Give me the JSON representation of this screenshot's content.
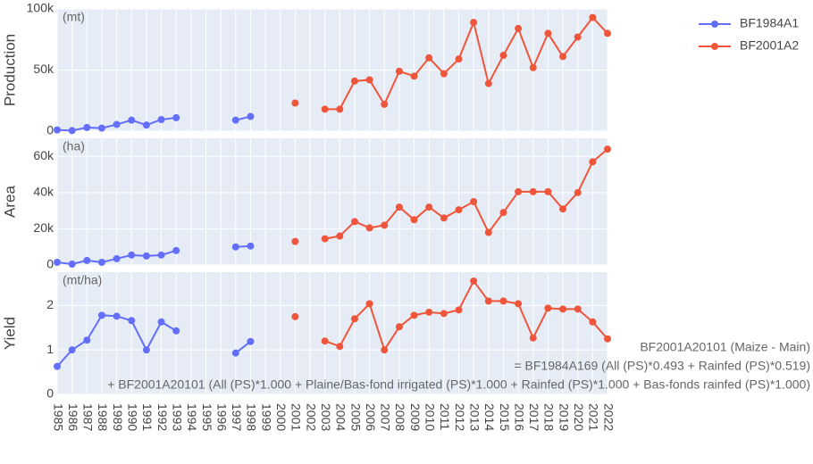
{
  "chart_data": {
    "type": "line",
    "x": [
      1985,
      1986,
      1987,
      1988,
      1989,
      1990,
      1991,
      1992,
      1993,
      1994,
      1995,
      1996,
      1997,
      1998,
      1999,
      2000,
      2001,
      2002,
      2003,
      2004,
      2005,
      2006,
      2007,
      2008,
      2009,
      2010,
      2011,
      2012,
      2013,
      2014,
      2015,
      2016,
      2017,
      2018,
      2019,
      2020,
      2021,
      2022
    ],
    "xlim": [
      1985,
      2022
    ],
    "grid": true,
    "legend": "top-right",
    "series": [
      {
        "name": "BF1984A1",
        "color": "#636efa"
      },
      {
        "name": "BF2001A2",
        "color": "#ef553b"
      }
    ],
    "panels": [
      {
        "ylabel": "Production",
        "unit": "(mt)",
        "ylim": [
          0,
          100000
        ],
        "yticks": [
          0,
          {
            "value": 50000,
            "label": "50k"
          },
          {
            "value": 100000,
            "label": "100k"
          }
        ],
        "values": [
          [
            1000,
            500,
            3000,
            2500,
            5500,
            9000,
            5000,
            9500,
            11000,
            null,
            null,
            null,
            9000,
            12000,
            null,
            null,
            null,
            null,
            null,
            null,
            null,
            null,
            null,
            null,
            null,
            null,
            null,
            null,
            null,
            null,
            null,
            null,
            null,
            null,
            null,
            null,
            null,
            null
          ],
          [
            null,
            null,
            null,
            null,
            null,
            null,
            null,
            null,
            null,
            null,
            null,
            null,
            null,
            null,
            null,
            null,
            23000,
            null,
            18000,
            18000,
            41000,
            42000,
            22000,
            49000,
            45000,
            60000,
            47000,
            59000,
            89000,
            39000,
            62000,
            84000,
            52000,
            80000,
            61000,
            77000,
            93000,
            80000
          ]
        ]
      },
      {
        "ylabel": "Area",
        "unit": "(ha)",
        "ylim": [
          0,
          70000
        ],
        "yticks": [
          0,
          {
            "value": 20000,
            "label": "20k"
          },
          {
            "value": 40000,
            "label": "40k"
          },
          {
            "value": 60000,
            "label": "60k"
          }
        ],
        "values": [
          [
            1500,
            500,
            2500,
            1500,
            3500,
            5500,
            5000,
            5500,
            8000,
            null,
            null,
            null,
            10000,
            10500,
            null,
            null,
            null,
            null,
            null,
            null,
            null,
            null,
            null,
            null,
            null,
            null,
            null,
            null,
            null,
            null,
            null,
            null,
            null,
            null,
            null,
            null,
            null,
            null
          ],
          [
            null,
            null,
            null,
            null,
            null,
            null,
            null,
            null,
            null,
            null,
            null,
            null,
            null,
            null,
            null,
            null,
            13000,
            null,
            14500,
            16000,
            24000,
            20500,
            22000,
            32000,
            25000,
            32000,
            26000,
            30500,
            35000,
            18000,
            29000,
            40500,
            40500,
            40500,
            31000,
            40000,
            57000,
            64000
          ]
        ]
      },
      {
        "ylabel": "Yield",
        "unit": "(mt/ha)",
        "ylim": [
          0,
          2.75
        ],
        "yticks": [
          0,
          1,
          2
        ],
        "values": [
          [
            0.63,
            1.0,
            1.22,
            1.78,
            1.76,
            1.66,
            1.0,
            1.63,
            1.43,
            null,
            null,
            null,
            0.93,
            1.19,
            null,
            null,
            null,
            null,
            null,
            null,
            null,
            null,
            null,
            null,
            null,
            null,
            null,
            null,
            null,
            null,
            null,
            null,
            null,
            null,
            null,
            null,
            null,
            null
          ],
          [
            null,
            null,
            null,
            null,
            null,
            null,
            null,
            null,
            null,
            null,
            null,
            null,
            null,
            null,
            null,
            null,
            1.75,
            null,
            1.2,
            1.08,
            1.7,
            2.04,
            1.0,
            1.52,
            1.78,
            1.85,
            1.82,
            1.9,
            2.55,
            2.1,
            2.1,
            2.04,
            1.27,
            1.94,
            1.92,
            1.92,
            1.63,
            1.25
          ]
        ]
      }
    ],
    "annotation": [
      "BF2001A20101 (Maize - Main)",
      "= BF1984A169 (All (PS)*0.493 + Rainfed (PS)*0.519)",
      "+ BF2001A20101 (All (PS)*1.000 + Plaine/Bas-fond irrigated (PS)*1.000 + Rainfed (PS)*1.000 + Bas-fonds rainfed (PS)*1.000)"
    ]
  }
}
